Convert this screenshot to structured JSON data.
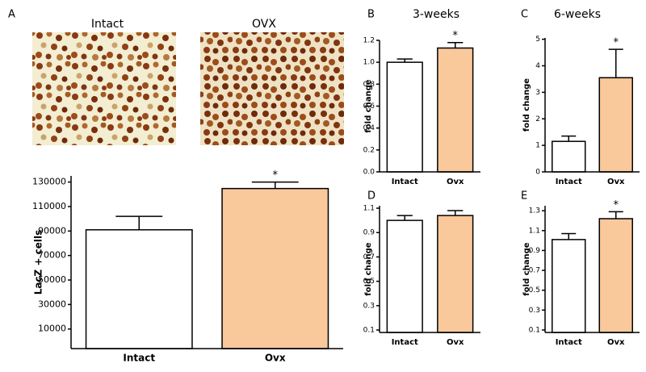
{
  "chart_data": [
    {
      "type": "bar",
      "panel_label": "A",
      "image_labels": [
        "Intact",
        "OVX"
      ],
      "ylabel": "LacZ + cells",
      "categories": [
        "Intact",
        "Ovx"
      ],
      "values": [
        91000,
        124700
      ],
      "errors": [
        11000,
        5300
      ],
      "colors": [
        "#ffffff",
        "#f9c89b"
      ],
      "significance": [
        null,
        "*"
      ],
      "ylim": [
        -6000,
        135000
      ],
      "yticks": [
        10000,
        30000,
        50000,
        70000,
        90000,
        110000,
        130000
      ]
    },
    {
      "type": "bar",
      "panel_label": "B",
      "title": "3-weeks",
      "ylabel": "fold change",
      "categories": [
        "Intact",
        "Ovx"
      ],
      "values": [
        1.0,
        1.13
      ],
      "errors": [
        0.03,
        0.05
      ],
      "colors": [
        "#ffffff",
        "#f9c89b"
      ],
      "significance": [
        null,
        "*"
      ],
      "ylim": [
        0,
        1.2
      ],
      "yticks": [
        {
          "value": 0,
          "label": "0.0"
        },
        0.2,
        0.4,
        0.6,
        0.8,
        {
          "value": 1,
          "label": "1.0"
        },
        1.2
      ]
    },
    {
      "type": "bar",
      "panel_label": "C",
      "title": "6-weeks",
      "ylabel": "fold change",
      "categories": [
        "Intact",
        "Ovx"
      ],
      "values": [
        1.15,
        3.55
      ],
      "errors": [
        0.2,
        1.07
      ],
      "colors": [
        "#ffffff",
        "#f9c89b"
      ],
      "significance": [
        null,
        "*"
      ],
      "ylim": [
        0,
        5.05
      ],
      "yticks": [
        0,
        1,
        2,
        3,
        4,
        5
      ]
    },
    {
      "type": "bar",
      "panel_label": "D",
      "ylabel": "fold change",
      "categories": [
        "Intact",
        "Ovx"
      ],
      "values": [
        1.0,
        1.04
      ],
      "errors": [
        0.04,
        0.04
      ],
      "colors": [
        "#ffffff",
        "#f9c89b"
      ],
      "significance": [
        null,
        null
      ],
      "ylim": [
        0.08,
        1.12
      ],
      "yticks": [
        0.1,
        0.3,
        0.5,
        0.7,
        0.9,
        1.1
      ]
    },
    {
      "type": "bar",
      "panel_label": "E",
      "ylabel": "fold change",
      "categories": [
        "Intact",
        "Ovx"
      ],
      "values": [
        1.01,
        1.22
      ],
      "errors": [
        0.06,
        0.07
      ],
      "colors": [
        "#ffffff",
        "#f9c89b"
      ],
      "significance": [
        null,
        "*"
      ],
      "ylim": [
        0.075,
        1.35
      ],
      "yticks": [
        0.1,
        0.3,
        0.5,
        0.7,
        0.9,
        1.1,
        1.3
      ]
    }
  ]
}
